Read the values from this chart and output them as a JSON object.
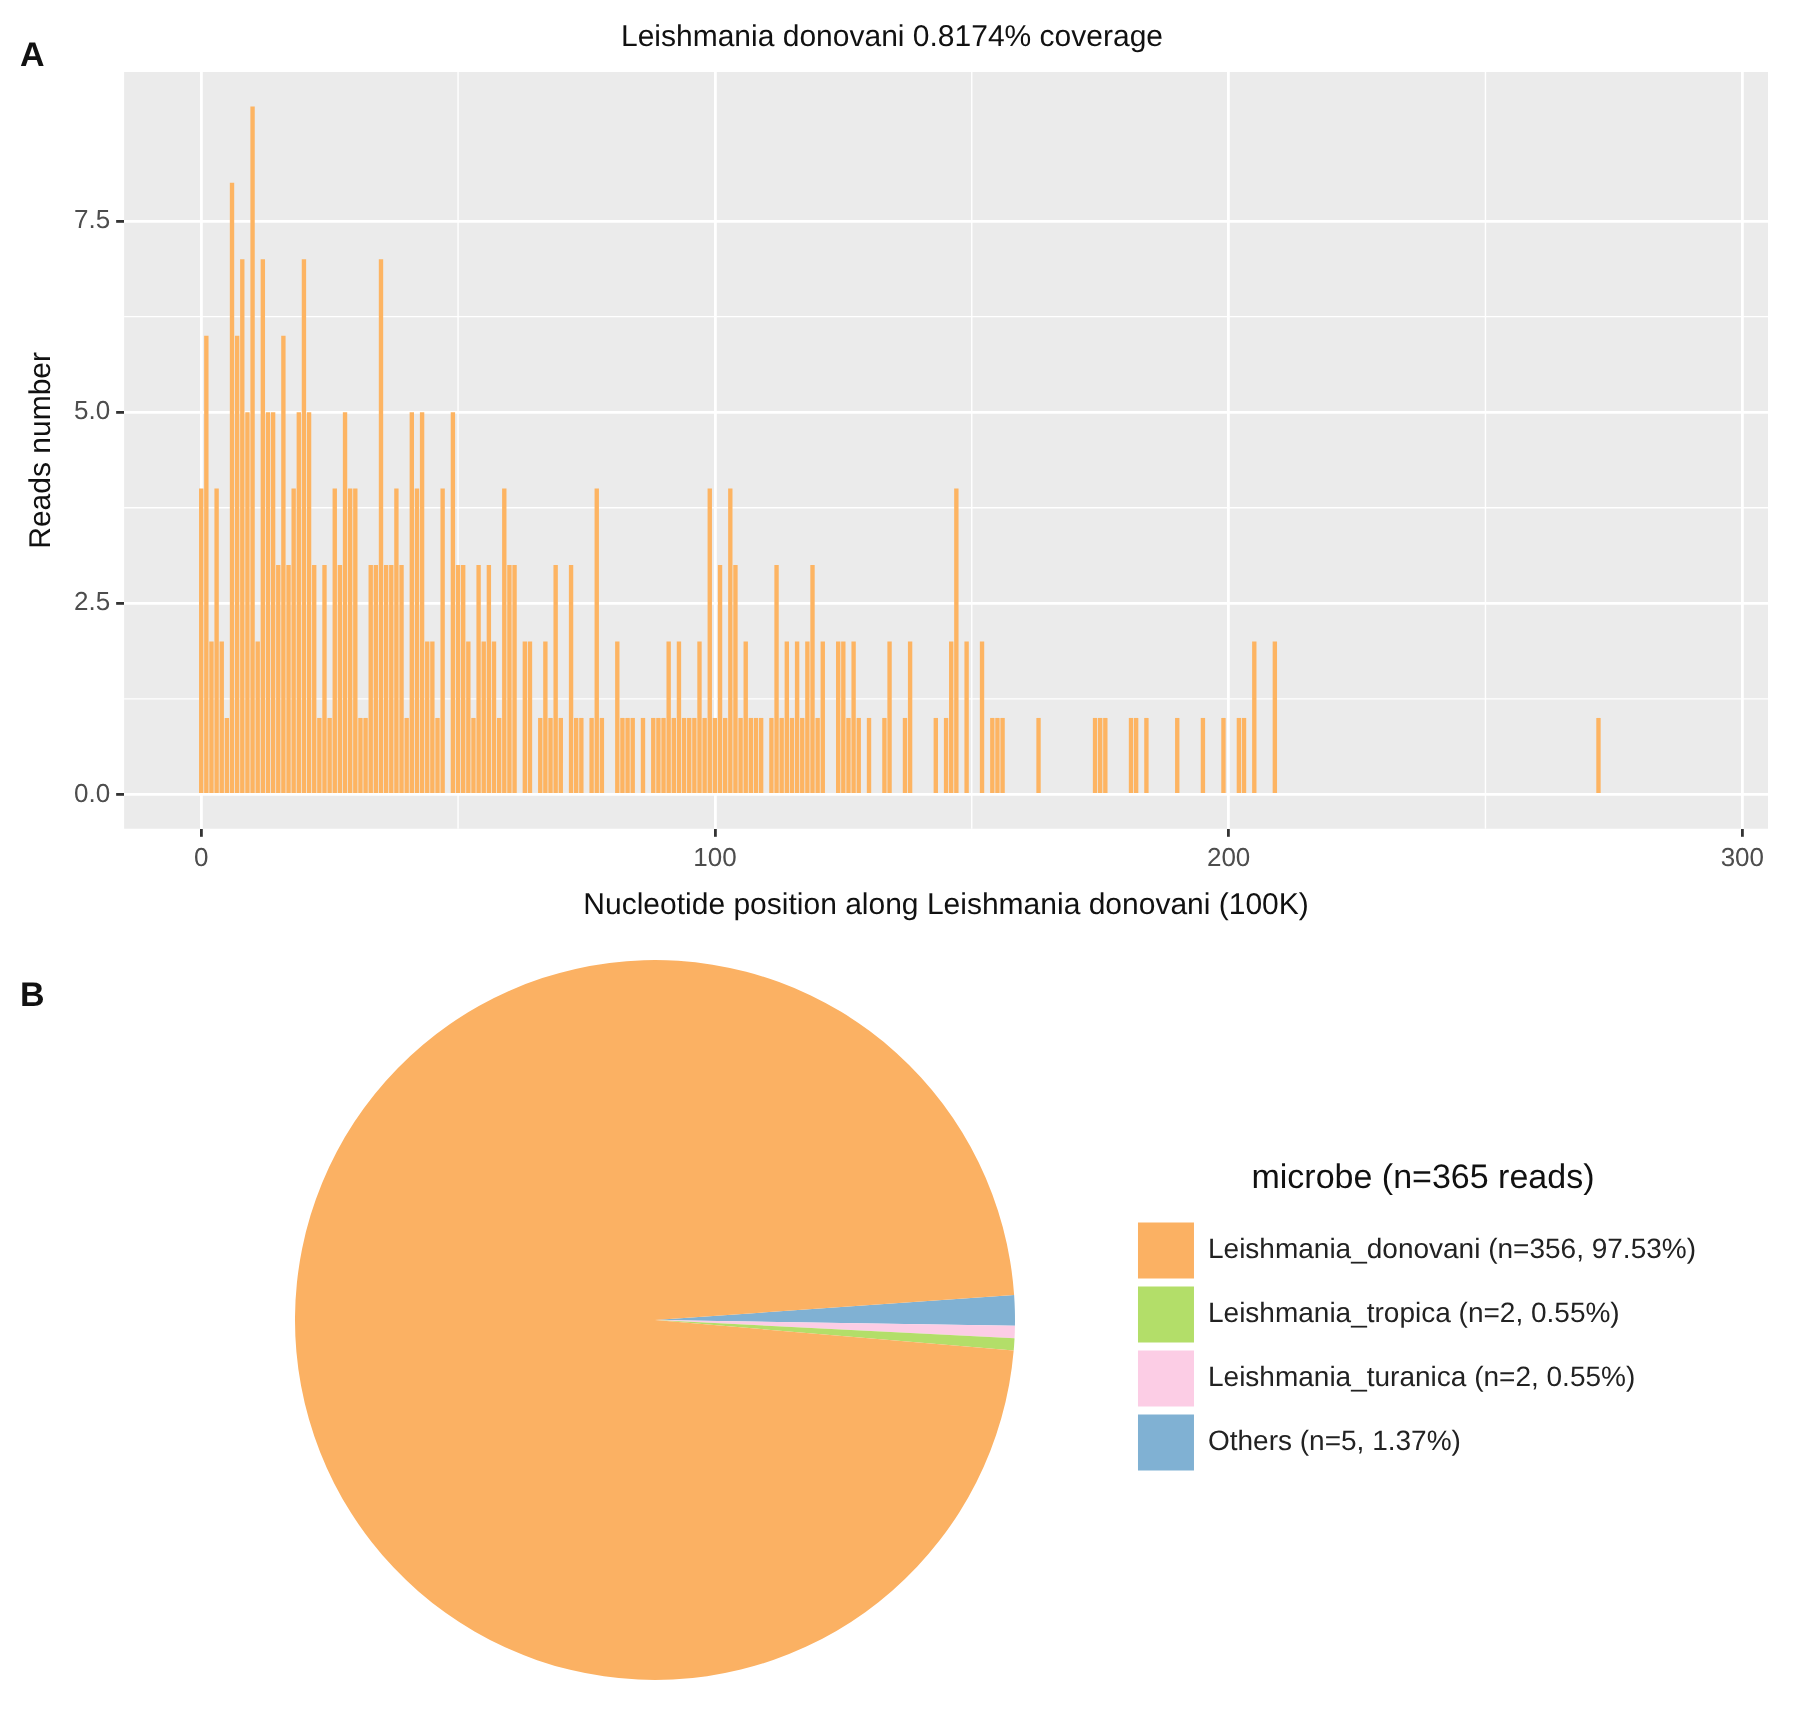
{
  "chart_data": [
    {
      "type": "bar",
      "title": "Leishmania donovani 0.8174% coverage",
      "xlabel": "Nucleotide position along Leishmania donovani (100K)",
      "ylabel": "Reads number",
      "annotations": [
        "A"
      ],
      "color": "#fdb462",
      "grid": true,
      "xlim": [
        -15,
        305
      ],
      "xticks": [
        0,
        100,
        200,
        300
      ],
      "ylim": [
        -0.45,
        9.45
      ],
      "yticks": [
        {
          "value": 0,
          "label": "0.0"
        },
        2.5,
        {
          "value": 5,
          "label": "5.0"
        },
        7.5
      ],
      "x": [
        0,
        1,
        2,
        3,
        4,
        5,
        6,
        7,
        8,
        9,
        10,
        11,
        12,
        13,
        14,
        15,
        16,
        17,
        18,
        19,
        20,
        21,
        22,
        23,
        24,
        25,
        26,
        27,
        28,
        29,
        30,
        31,
        32,
        33,
        34,
        35,
        36,
        37,
        38,
        39,
        40,
        41,
        42,
        43,
        44,
        45,
        46,
        47,
        49,
        50,
        51,
        52,
        53,
        54,
        55,
        56,
        57,
        58,
        59,
        60,
        61,
        63,
        64,
        66,
        67,
        68,
        69,
        70,
        72,
        73,
        74,
        76,
        77,
        78,
        81,
        82,
        83,
        84,
        86,
        88,
        89,
        90,
        91,
        92,
        93,
        94,
        95,
        96,
        97,
        98,
        99,
        100,
        101,
        102,
        103,
        104,
        105,
        106,
        107,
        108,
        109,
        111,
        112,
        113,
        114,
        115,
        116,
        117,
        118,
        119,
        120,
        121,
        124,
        125,
        126,
        127,
        128,
        130,
        133,
        134,
        137,
        138,
        143,
        145,
        146,
        147,
        149,
        152,
        154,
        155,
        156,
        163,
        174,
        175,
        176,
        181,
        182,
        184,
        190,
        195,
        199,
        202,
        203,
        205,
        209,
        272
      ],
      "values": [
        4,
        6,
        2,
        4,
        2,
        1,
        8,
        6,
        7,
        5,
        9,
        2,
        7,
        5,
        5,
        3,
        6,
        3,
        4,
        5,
        7,
        5,
        3,
        1,
        3,
        1,
        4,
        3,
        5,
        4,
        4,
        1,
        1,
        3,
        3,
        7,
        3,
        3,
        4,
        3,
        1,
        5,
        4,
        5,
        2,
        2,
        1,
        4,
        5,
        3,
        3,
        2,
        1,
        3,
        2,
        3,
        2,
        1,
        4,
        3,
        3,
        2,
        2,
        1,
        2,
        1,
        3,
        1,
        3,
        1,
        1,
        1,
        4,
        1,
        2,
        1,
        1,
        1,
        1,
        1,
        1,
        1,
        2,
        1,
        2,
        1,
        1,
        1,
        2,
        1,
        4,
        1,
        3,
        1,
        4,
        3,
        1,
        2,
        1,
        1,
        1,
        1,
        3,
        1,
        2,
        1,
        2,
        1,
        2,
        3,
        1,
        2,
        2,
        2,
        1,
        2,
        1,
        1,
        1,
        2,
        1,
        2,
        1,
        1,
        2,
        4,
        2,
        2,
        1,
        1,
        1,
        1,
        1,
        1,
        1,
        1,
        1,
        1,
        1,
        1,
        1,
        1,
        1,
        2,
        2,
        1
      ]
    },
    {
      "type": "pie",
      "annotations": [
        "B"
      ],
      "legend": "right",
      "legend_title": "microbe (n=365 reads)",
      "categories": [
        "Leishmania_donovani (n=356, 97.53%)",
        "Leishmania_tropica (n=2, 0.55%)",
        "Leishmania_turanica (n=2, 0.55%)",
        "Others (n=5, 1.37%)"
      ],
      "values": [
        356,
        2,
        2,
        5
      ],
      "colors": [
        "#fbb163",
        "#b3de69",
        "#fccde5",
        "#80b1d3"
      ]
    }
  ]
}
